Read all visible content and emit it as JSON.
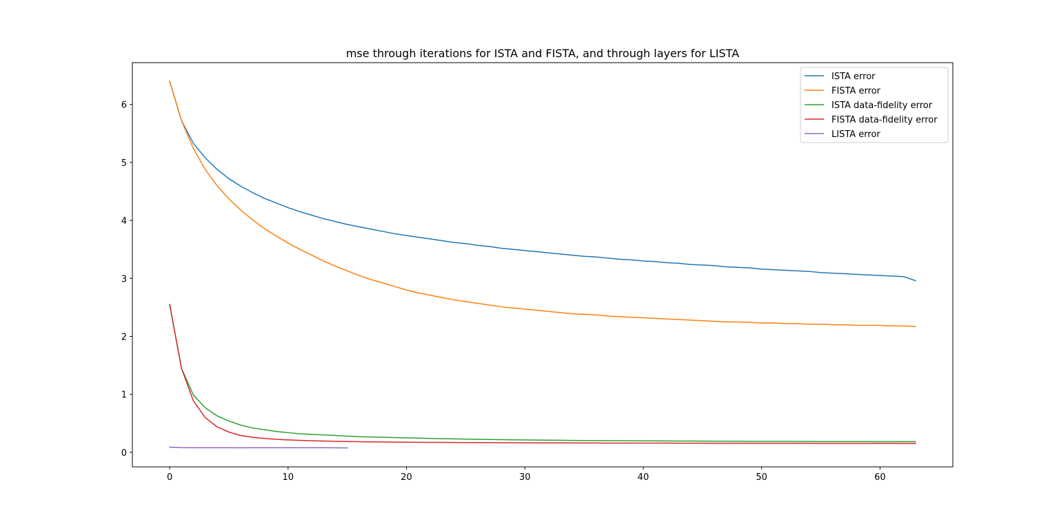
{
  "chart_data": {
    "type": "line",
    "title": "mse through iterations for ISTA and FISTA, and through layers for LISTA",
    "xlabel": "",
    "ylabel": "",
    "xlim": [
      -3.15,
      66.15
    ],
    "ylim": [
      -0.25,
      6.72
    ],
    "xticks": [
      0,
      10,
      20,
      30,
      40,
      50,
      60
    ],
    "yticks": [
      0,
      1,
      2,
      3,
      4,
      5,
      6
    ],
    "grid": false,
    "legend_position": "top-right",
    "series": [
      {
        "name": "ISTA error",
        "color": "#1f77b4",
        "start": 0,
        "values": [
          6.4,
          5.72,
          5.33,
          5.08,
          4.88,
          4.72,
          4.59,
          4.48,
          4.38,
          4.3,
          4.22,
          4.15,
          4.09,
          4.03,
          3.98,
          3.93,
          3.89,
          3.85,
          3.81,
          3.77,
          3.74,
          3.71,
          3.68,
          3.65,
          3.62,
          3.6,
          3.57,
          3.55,
          3.52,
          3.5,
          3.48,
          3.46,
          3.44,
          3.42,
          3.4,
          3.38,
          3.37,
          3.35,
          3.33,
          3.32,
          3.3,
          3.29,
          3.27,
          3.26,
          3.24,
          3.23,
          3.22,
          3.2,
          3.19,
          3.18,
          3.16,
          3.15,
          3.14,
          3.13,
          3.12,
          3.1,
          3.09,
          3.08,
          3.07,
          3.06,
          3.05,
          3.04,
          3.03,
          2.96
        ]
      },
      {
        "name": "FISTA error",
        "color": "#ff7f0e",
        "start": 0,
        "values": [
          6.4,
          5.72,
          5.24,
          4.88,
          4.6,
          4.37,
          4.18,
          4.01,
          3.86,
          3.73,
          3.61,
          3.5,
          3.4,
          3.3,
          3.21,
          3.13,
          3.05,
          2.98,
          2.92,
          2.86,
          2.8,
          2.75,
          2.71,
          2.67,
          2.63,
          2.6,
          2.57,
          2.54,
          2.51,
          2.49,
          2.47,
          2.45,
          2.43,
          2.41,
          2.39,
          2.38,
          2.37,
          2.35,
          2.34,
          2.33,
          2.32,
          2.31,
          2.3,
          2.29,
          2.28,
          2.27,
          2.26,
          2.25,
          2.25,
          2.24,
          2.23,
          2.23,
          2.22,
          2.22,
          2.21,
          2.21,
          2.2,
          2.2,
          2.19,
          2.19,
          2.19,
          2.18,
          2.18,
          2.17
        ]
      },
      {
        "name": "ISTA data-fidelity error",
        "color": "#2ca02c",
        "start": 0,
        "values": [
          2.55,
          1.45,
          0.99,
          0.77,
          0.63,
          0.54,
          0.47,
          0.42,
          0.39,
          0.36,
          0.34,
          0.32,
          0.31,
          0.3,
          0.29,
          0.28,
          0.27,
          0.265,
          0.26,
          0.255,
          0.25,
          0.245,
          0.24,
          0.236,
          0.232,
          0.228,
          0.225,
          0.222,
          0.219,
          0.216,
          0.214,
          0.212,
          0.21,
          0.208,
          0.206,
          0.204,
          0.203,
          0.202,
          0.201,
          0.2,
          0.199,
          0.198,
          0.197,
          0.196,
          0.195,
          0.194,
          0.193,
          0.192,
          0.191,
          0.19,
          0.19,
          0.189,
          0.189,
          0.188,
          0.188,
          0.187,
          0.187,
          0.186,
          0.186,
          0.186,
          0.185,
          0.185,
          0.185,
          0.185
        ]
      },
      {
        "name": "FISTA data-fidelity error",
        "color": "#d62728",
        "start": 0,
        "values": [
          2.55,
          1.45,
          0.89,
          0.6,
          0.44,
          0.35,
          0.29,
          0.26,
          0.24,
          0.225,
          0.215,
          0.207,
          0.2,
          0.195,
          0.191,
          0.187,
          0.184,
          0.181,
          0.179,
          0.177,
          0.175,
          0.173,
          0.172,
          0.171,
          0.17,
          0.169,
          0.168,
          0.167,
          0.166,
          0.165,
          0.164,
          0.163,
          0.163,
          0.162,
          0.162,
          0.161,
          0.161,
          0.16,
          0.16,
          0.16,
          0.159,
          0.159,
          0.159,
          0.158,
          0.158,
          0.158,
          0.157,
          0.157,
          0.157,
          0.157,
          0.156,
          0.156,
          0.156,
          0.156,
          0.156,
          0.155,
          0.155,
          0.155,
          0.155,
          0.155,
          0.155,
          0.155,
          0.154,
          0.154
        ]
      },
      {
        "name": "LISTA error",
        "color": "#9467bd",
        "start": 0,
        "values": [
          0.09,
          0.082,
          0.08,
          0.079,
          0.079,
          0.08,
          0.078,
          0.079,
          0.08,
          0.079,
          0.079,
          0.08,
          0.079,
          0.079,
          0.078,
          0.077
        ]
      }
    ]
  }
}
